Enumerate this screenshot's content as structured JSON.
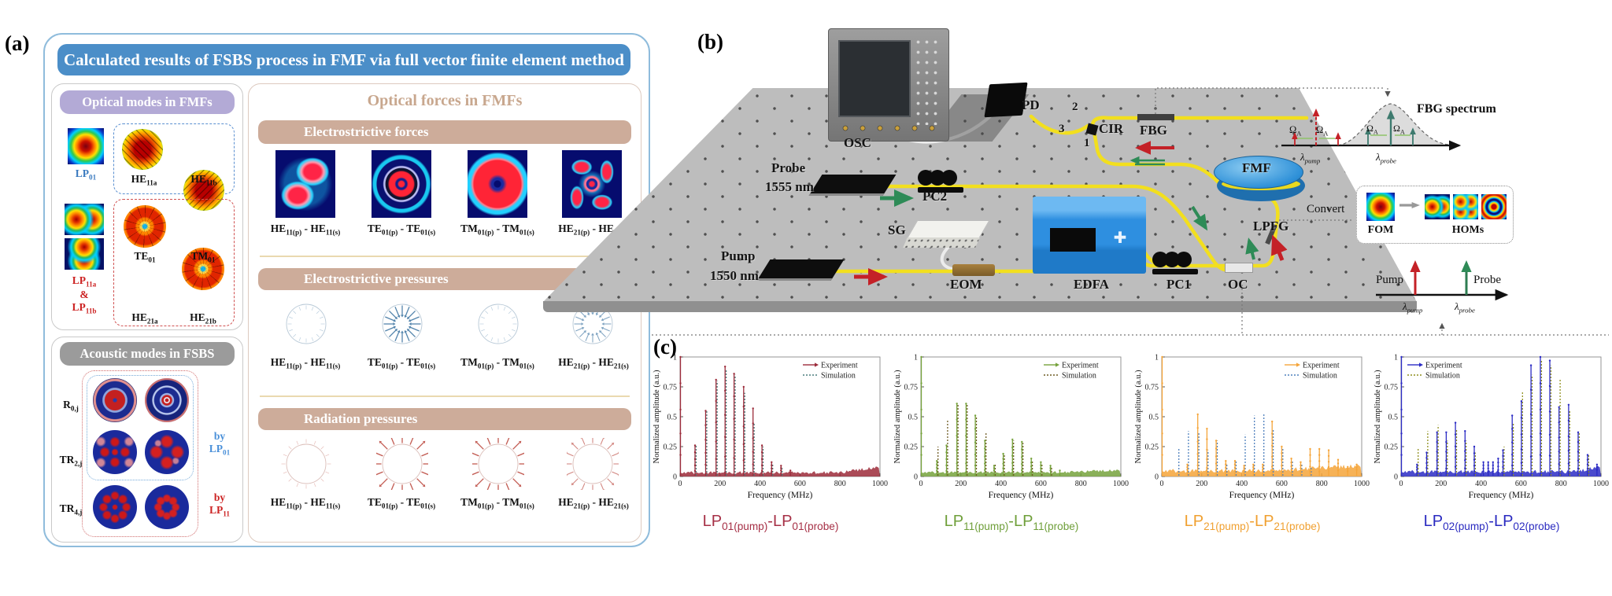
{
  "figure": {
    "panel_a_label": "(a)",
    "panel_b_label": "(b)",
    "panel_c_label": "(c)",
    "panel_a": {
      "title": "Calculated results of FSBS process in FMF via full vector finite element method",
      "optical_modes": {
        "header": "Optical modes in FMFs",
        "lp01": "LP_{01}",
        "he11a": "HE_{11a}",
        "he11b": "HE_{11b}",
        "te01": "TE_{01}",
        "tm01": "TM_{01}",
        "lp11_group": "LP_{11a}\n&\nLP_{11b}",
        "he21a": "HE_{21a}",
        "he21b": "HE_{21b}"
      },
      "acoustic_modes": {
        "header": "Acoustic modes in FSBS",
        "row_r0j": "R_{0,j}",
        "row_tr2j": "TR_{2,j}",
        "row_tr4j": "TR_{4,j}",
        "by_lp01": "by\nLP_{01}",
        "by_lp11": "by\nLP_{11}"
      },
      "optical_forces": {
        "title": "Optical forces in FMFs",
        "section1": "Electrostrictive forces",
        "section2": "Electrostrictive pressures",
        "section3": "Radiation pressures",
        "pair_labels": [
          "HE_{11(p)} - HE_{11(s)}",
          "TE_{01(p)} - TE_{01(s)}",
          "TM_{01(p)} - TM_{01(s)}",
          "HE_{21(p)} - HE_{21(s)}"
        ],
        "pressures": {
          "electro_strengths": [
            "faint",
            "strong",
            "faint",
            "medium"
          ],
          "radiation_strengths": [
            "faint",
            "strong",
            "strong",
            "medium"
          ],
          "electro_color": "#4a7da8",
          "electro_ring": "#9fb6c8",
          "radiation_color": "#bf5148",
          "radiation_ring": "#cfa8a2"
        }
      }
    },
    "panel_b": {
      "labels": {
        "osc": "OSC",
        "pd": "PD",
        "cir": "CIR",
        "port1": "1",
        "port2": "2",
        "port3": "3",
        "fbg": "FBG",
        "fmf": "FMF",
        "lpfg": "LPFG",
        "probe_line1": "Probe",
        "probe_line2": "1555 nm",
        "pc2": "PC2",
        "sg": "SG",
        "eom": "EOM",
        "edfa": "EDFA",
        "pc1": "PC1",
        "oc": "OC",
        "pump_line1": "Pump",
        "pump_line2": "1550 nm"
      },
      "inset_fbg": {
        "title": "FBG spectrum",
        "omega": "Ω_{A}",
        "lambda_pump": "λ_{pump}",
        "lambda_probe": "λ_{probe}"
      },
      "inset_convert": {
        "label": "Convert",
        "fom": "FOM",
        "homs": "HOMs"
      },
      "inset_axis": {
        "pump": "Pump",
        "probe": "Probe",
        "lambda_pump": "λ_{pump}",
        "lambda_probe": "λ_{probe}"
      }
    },
    "chart_data": [
      {
        "type": "line",
        "title": "LP_{01(pump)}-LP_{01(probe)}",
        "title_color": "#a63046",
        "xlabel": "Frequency (MHz)",
        "ylabel": "Normalized amplitude (a.u.)",
        "xlim": [
          0,
          1000
        ],
        "ylim": [
          0,
          1
        ],
        "xticks": [
          0,
          200,
          400,
          600,
          800,
          1000
        ],
        "yticks": [
          0,
          0.25,
          0.5,
          0.75,
          1
        ],
        "legend": [
          "Experiment",
          "Simulation"
        ],
        "legend_pos": "top-right",
        "exp_color": "#9c2b3a",
        "sim_color": "#4a7d7d",
        "noise": {
          "base": 0.02,
          "amp": 0.025,
          "rise_from": 800,
          "rise": 0.05
        },
        "series": [
          {
            "name": "Experiment",
            "peaks": [
              [
                2,
                1.0
              ],
              [
                75,
                0.26
              ],
              [
                128,
                0.55
              ],
              [
                180,
                0.81
              ],
              [
                225,
                0.92
              ],
              [
                270,
                0.86
              ],
              [
                318,
                0.75
              ],
              [
                365,
                0.57
              ],
              [
                410,
                0.26
              ],
              [
                458,
                0.12
              ],
              [
                505,
                0.09
              ],
              [
                552,
                0.05
              ]
            ]
          },
          {
            "name": "Simulation",
            "peaks": [
              [
                75,
                0.27
              ],
              [
                128,
                0.55
              ],
              [
                180,
                0.8
              ],
              [
                225,
                0.9
              ],
              [
                270,
                0.85
              ],
              [
                318,
                0.7
              ],
              [
                365,
                0.45
              ],
              [
                410,
                0.25
              ],
              [
                458,
                0.1
              ],
              [
                505,
                0.07
              ]
            ]
          }
        ]
      },
      {
        "type": "line",
        "title": "LP_{11(pump)}-LP_{11(probe)}",
        "title_color": "#6f9f3a",
        "xlabel": "Frequency (MHz)",
        "ylabel": "Normalized amplitude (a.u.)",
        "xlim": [
          0,
          1000
        ],
        "ylim": [
          0,
          1
        ],
        "xticks": [
          0,
          200,
          400,
          600,
          800,
          1000
        ],
        "yticks": [
          0,
          0.25,
          0.5,
          0.75,
          1
        ],
        "legend": [
          "Experiment",
          "Simulation"
        ],
        "legend_pos": "top-right",
        "exp_color": "#76a23c",
        "sim_color": "#6e5b23",
        "noise": {
          "base": 0.025,
          "amp": 0.02,
          "rise_from": 720,
          "rise": 0.02
        },
        "series": [
          {
            "name": "Experiment",
            "peaks": [
              [
                2,
                1.0
              ],
              [
                80,
                0.13
              ],
              [
                128,
                0.26
              ],
              [
                180,
                0.61
              ],
              [
                226,
                0.61
              ],
              [
                272,
                0.51
              ],
              [
                320,
                0.3
              ],
              [
                366,
                0.09
              ],
              [
                412,
                0.19
              ],
              [
                458,
                0.31
              ],
              [
                505,
                0.29
              ],
              [
                552,
                0.15
              ],
              [
                600,
                0.12
              ],
              [
                648,
                0.09
              ],
              [
                695,
                0.05
              ]
            ]
          },
          {
            "name": "Simulation",
            "peaks": [
              [
                80,
                0.25
              ],
              [
                128,
                0.48
              ],
              [
                180,
                0.6
              ],
              [
                226,
                0.6
              ],
              [
                272,
                0.5
              ],
              [
                320,
                0.37
              ],
              [
                366,
                0.1
              ],
              [
                412,
                0.19
              ],
              [
                458,
                0.3
              ],
              [
                505,
                0.28
              ],
              [
                552,
                0.13
              ],
              [
                600,
                0.11
              ],
              [
                648,
                0.08
              ]
            ]
          }
        ]
      },
      {
        "type": "line",
        "title": "LP_{21(pump)}-LP_{21(probe)}",
        "title_color": "#f0a030",
        "xlabel": "Frequency (MHz)",
        "ylabel": "Normalized amplitude (a.u.)",
        "xlim": [
          0,
          1000
        ],
        "ylim": [
          0,
          1
        ],
        "xticks": [
          0,
          200,
          400,
          600,
          800,
          1000
        ],
        "yticks": [
          0,
          0.25,
          0.5,
          0.75,
          1
        ],
        "legend": [
          "Experiment",
          "Simulation"
        ],
        "legend_pos": "top-right",
        "exp_color": "#f5a53a",
        "sim_color": "#4f81bd",
        "noise": {
          "base": 0.03,
          "amp": 0.035,
          "rise_from": 550,
          "rise": 0.045
        },
        "series": [
          {
            "name": "Experiment",
            "peaks": [
              [
                2,
                1.0
              ],
              [
                128,
                0.1
              ],
              [
                180,
                0.52
              ],
              [
                226,
                0.4
              ],
              [
                272,
                0.3
              ],
              [
                320,
                0.13
              ],
              [
                366,
                0.13
              ],
              [
                412,
                0.09
              ],
              [
                458,
                0.1
              ],
              [
                505,
                0.1
              ],
              [
                552,
                0.46
              ],
              [
                600,
                0.25
              ],
              [
                648,
                0.15
              ],
              [
                695,
                0.12
              ],
              [
                742,
                0.23
              ],
              [
                788,
                0.23
              ],
              [
                835,
                0.22
              ],
              [
                882,
                0.14
              ],
              [
                930,
                0.08
              ],
              [
                975,
                0.1
              ]
            ]
          },
          {
            "name": "Simulation",
            "peaks": [
              [
                80,
                0.23
              ],
              [
                128,
                0.38
              ],
              [
                180,
                0.37
              ],
              [
                226,
                0.22
              ],
              [
                272,
                0.3
              ],
              [
                320,
                0.1
              ],
              [
                366,
                0.13
              ],
              [
                412,
                0.35
              ],
              [
                458,
                0.51
              ],
              [
                505,
                0.53
              ],
              [
                552,
                0.4
              ],
              [
                600,
                0.24
              ],
              [
                648,
                0.13
              ],
              [
                695,
                0.1
              ],
              [
                742,
                0.08
              ]
            ]
          }
        ]
      },
      {
        "type": "line",
        "title": "LP_{02(pump)}-LP_{02(probe)}",
        "title_color": "#2a2ac0",
        "xlabel": "Frequency (MHz)",
        "ylabel": "Normalized amplitude (a.u.)",
        "xlim": [
          0,
          1000
        ],
        "ylim": [
          0,
          1
        ],
        "xticks": [
          0,
          200,
          400,
          600,
          800,
          1000
        ],
        "yticks": [
          0,
          0.25,
          0.5,
          0.75,
          1
        ],
        "legend": [
          "Experiment",
          "Simulation"
        ],
        "legend_pos": "top-left",
        "exp_color": "#2b2bc4",
        "sim_color": "#8f8f1f",
        "noise": {
          "base": 0.025,
          "amp": 0.03,
          "rise_from": 880,
          "rise": 0.05
        },
        "series": [
          {
            "name": "Experiment",
            "peaks": [
              [
                2,
                1.0
              ],
              [
                80,
                0.1
              ],
              [
                128,
                0.2
              ],
              [
                180,
                0.37
              ],
              [
                226,
                0.37
              ],
              [
                272,
                0.45
              ],
              [
                320,
                0.38
              ],
              [
                366,
                0.25
              ],
              [
                412,
                0.12
              ],
              [
                436,
                0.12
              ],
              [
                460,
                0.12
              ],
              [
                486,
                0.15
              ],
              [
                510,
                0.22
              ],
              [
                556,
                0.51
              ],
              [
                602,
                0.63
              ],
              [
                650,
                0.93
              ],
              [
                697,
                1.0
              ],
              [
                744,
                0.97
              ],
              [
                790,
                0.58
              ],
              [
                838,
                0.6
              ],
              [
                886,
                0.37
              ],
              [
                933,
                0.18
              ],
              [
                980,
                0.1
              ]
            ]
          },
          {
            "name": "Simulation",
            "peaks": [
              [
                80,
                0.23
              ],
              [
                128,
                0.38
              ],
              [
                180,
                0.43
              ],
              [
                226,
                0.3
              ],
              [
                272,
                0.4
              ],
              [
                320,
                0.3
              ],
              [
                366,
                0.2
              ],
              [
                510,
                0.25
              ],
              [
                556,
                0.45
              ],
              [
                602,
                0.71
              ],
              [
                650,
                0.85
              ],
              [
                697,
                0.98
              ],
              [
                744,
                0.93
              ],
              [
                790,
                0.82
              ],
              [
                838,
                0.55
              ],
              [
                886,
                0.37
              ],
              [
                933,
                0.18
              ]
            ]
          }
        ]
      }
    ]
  }
}
